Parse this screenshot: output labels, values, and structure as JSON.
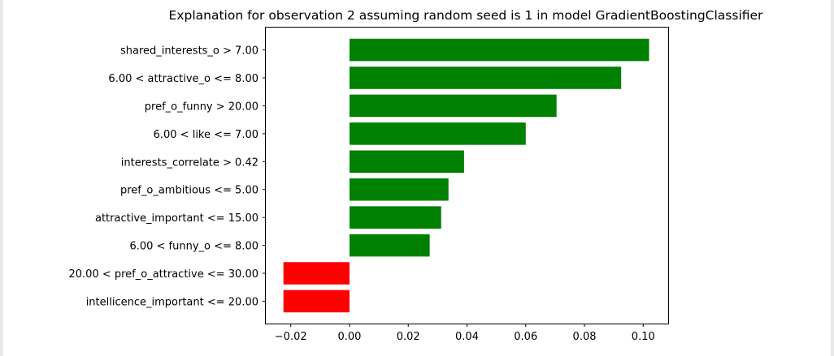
{
  "chart_data": {
    "type": "bar",
    "orientation": "horizontal",
    "title": "Explanation for observation 2 assuming random seed is 1 in model GradientBoostingClassifier",
    "xlabel": "",
    "ylabel": "",
    "categories": [
      "shared_interests_o > 7.00",
      "6.00 < attractive_o <= 8.00",
      "pref_o_funny > 20.00",
      "6.00 < like <= 7.00",
      "interests_correlate > 0.42",
      "pref_o_ambitious <= 5.00",
      "attractive_important <= 15.00",
      "6.00 < funny_o <= 8.00",
      "20.00 < pref_o_attractive <= 30.00",
      "intellicence_important <= 20.00"
    ],
    "values": [
      0.102,
      0.0925,
      0.0705,
      0.06,
      0.039,
      0.0337,
      0.0312,
      0.0273,
      -0.0225,
      -0.0225
    ],
    "xlim": [
      -0.0285,
      0.1085
    ],
    "xticks": [
      -0.02,
      0.0,
      0.02,
      0.04,
      0.06,
      0.08,
      0.1
    ],
    "xtick_labels": [
      "−0.02",
      "0.00",
      "0.02",
      "0.04",
      "0.06",
      "0.08",
      "0.10"
    ],
    "colors": {
      "positive": "#008000",
      "negative": "#ff0000"
    },
    "grid": false,
    "legend": "none"
  }
}
